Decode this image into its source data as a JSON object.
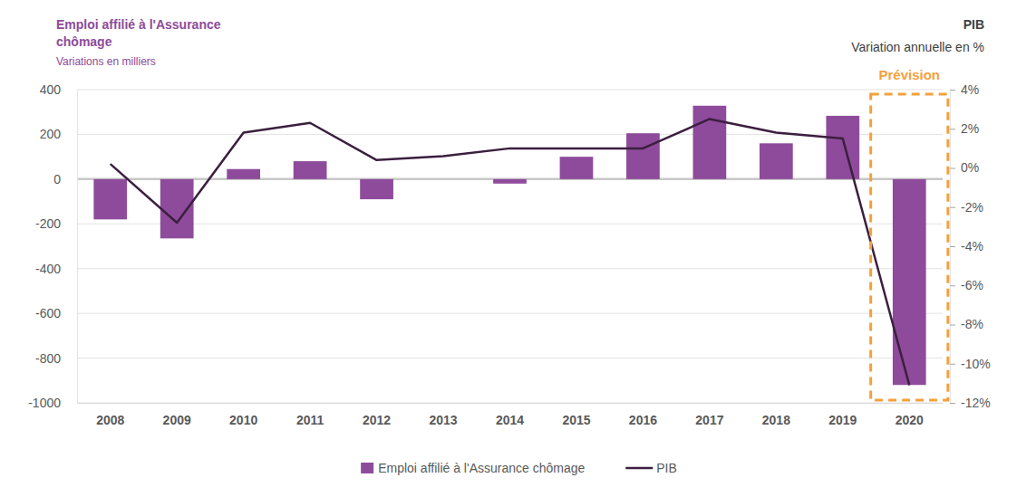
{
  "chart_data": {
    "type": "bar",
    "ylabel_lines": [
      "Emploi affilié à l'Assurance",
      "chômage"
    ],
    "ylabel_sub": "Variations en milliers",
    "y2label": "PIB",
    "y2label_sub": "Variation annuelle en %",
    "categories": [
      "2008",
      "2009",
      "2010",
      "2011",
      "2012",
      "2013",
      "2014",
      "2015",
      "2016",
      "2017",
      "2018",
      "2019",
      "2020"
    ],
    "series": [
      {
        "name": "Emploi affilié à l'Assurance chômage",
        "type": "bar",
        "color": "#8e4b9b",
        "values": [
          -180,
          -265,
          45,
          80,
          -90,
          0,
          -20,
          100,
          205,
          328,
          160,
          283,
          -920
        ]
      },
      {
        "name": "PIB",
        "type": "line",
        "color": "#3b1f3f",
        "axis": "y2",
        "values": [
          0.2,
          -2.8,
          1.8,
          2.3,
          0.4,
          0.6,
          1.0,
          1.0,
          1.0,
          2.5,
          1.8,
          1.5,
          -11.1
        ]
      }
    ],
    "ylim": [
      -1000,
      400
    ],
    "yticks": [
      -1000,
      -800,
      -600,
      -400,
      -200,
      0,
      200,
      400
    ],
    "y2lim": [
      -12,
      4
    ],
    "y2ticks": [
      {
        "value": -12,
        "label": "-12%"
      },
      {
        "value": -10,
        "label": "-10%"
      },
      {
        "value": -8,
        "label": "-8%"
      },
      {
        "value": -6,
        "label": "-6%"
      },
      {
        "value": -4,
        "label": "-4%"
      },
      {
        "value": -2,
        "label": "-2%"
      },
      {
        "value": 0,
        "label": "0%"
      },
      {
        "value": 2,
        "label": "2%"
      },
      {
        "value": 4,
        "label": "4%"
      }
    ],
    "grid": true,
    "legend": "bottom",
    "annotation": {
      "text": "Prévision",
      "at": "2020",
      "color": "#f4a03c"
    }
  }
}
